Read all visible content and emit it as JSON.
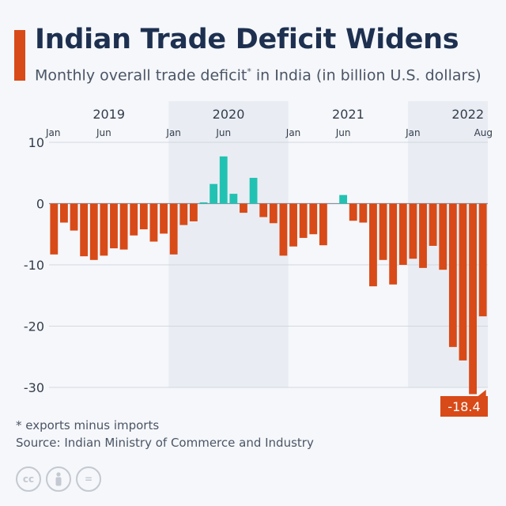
{
  "header": {
    "title": "Indian Trade Deficit Widens",
    "subtitle": "Monthly overall trade deficit",
    "subtitle_mark": "*",
    "subtitle_tail": " in India (in billion U.S. dollars)"
  },
  "footer": {
    "footnote": "* exports minus imports",
    "source": "Source: Indian Ministry of Commerce and Industry",
    "licence_icons": [
      "cc-icon",
      "person-icon",
      "equals-icon"
    ],
    "licence_text": [
      "cc",
      "",
      "="
    ]
  },
  "colors": {
    "negative": "#d84a18",
    "positive": "#22c2b2",
    "accent": "#d84a18",
    "title": "#1e3050",
    "text": "#4b5566",
    "band": "#e9edf3",
    "grid": "#c9cfd8",
    "callout": "#d84a18"
  },
  "chart_data": {
    "type": "bar",
    "title": "Indian Trade Deficit Widens",
    "ylabel": "billion U.S. dollars",
    "ylim": [
      -30,
      10
    ],
    "yticks": [
      10,
      0,
      -10,
      -20,
      -30
    ],
    "grid": true,
    "year_labels": [
      "2019",
      "2020",
      "2021",
      "2022"
    ],
    "shaded_years": [
      "2020",
      "2022"
    ],
    "month_ticks": [
      {
        "label": "Jan",
        "index": 0
      },
      {
        "label": "Jun",
        "index": 5
      },
      {
        "label": "Jan",
        "index": 12
      },
      {
        "label": "Jun",
        "index": 17
      },
      {
        "label": "Jan",
        "index": 24
      },
      {
        "label": "Jun",
        "index": 29
      },
      {
        "label": "Jan",
        "index": 36
      },
      {
        "label": "Aug",
        "index": 43
      }
    ],
    "categories": [
      "Jan 2019",
      "Feb 2019",
      "Mar 2019",
      "Apr 2019",
      "May 2019",
      "Jun 2019",
      "Jul 2019",
      "Aug 2019",
      "Sep 2019",
      "Oct 2019",
      "Nov 2019",
      "Dec 2019",
      "Jan 2020",
      "Feb 2020",
      "Mar 2020",
      "Apr 2020",
      "May 2020",
      "Jun 2020",
      "Jul 2020",
      "Aug 2020",
      "Sep 2020",
      "Oct 2020",
      "Nov 2020",
      "Dec 2020",
      "Jan 2021",
      "Feb 2021",
      "Mar 2021",
      "Apr 2021",
      "May 2021",
      "Jun 2021",
      "Jul 2021",
      "Aug 2021",
      "Sep 2021",
      "Oct 2021",
      "Nov 2021",
      "Dec 2021",
      "Jan 2022",
      "Feb 2022",
      "Mar 2022",
      "Apr 2022",
      "May 2022",
      "Jun 2022",
      "Jul 2022",
      "Aug 2022"
    ],
    "values": [
      -8.3,
      -3.1,
      -4.4,
      -8.6,
      -9.2,
      -8.5,
      -7.3,
      -7.5,
      -5.2,
      -4.2,
      -6.2,
      -4.9,
      -8.3,
      -3.5,
      -2.9,
      0.2,
      3.2,
      7.7,
      1.6,
      -1.5,
      4.2,
      -2.2,
      -3.2,
      -8.5,
      -7.0,
      -5.6,
      -5.0,
      -6.8,
      0.0,
      1.4,
      -2.8,
      -3.1,
      -13.5,
      -9.2,
      -13.2,
      -10.0,
      -9.0,
      -10.5,
      -6.9,
      -10.8,
      -23.4,
      -25.6,
      -31.1,
      -18.4
    ],
    "callout": {
      "index": 43,
      "label": "-18.4"
    }
  }
}
